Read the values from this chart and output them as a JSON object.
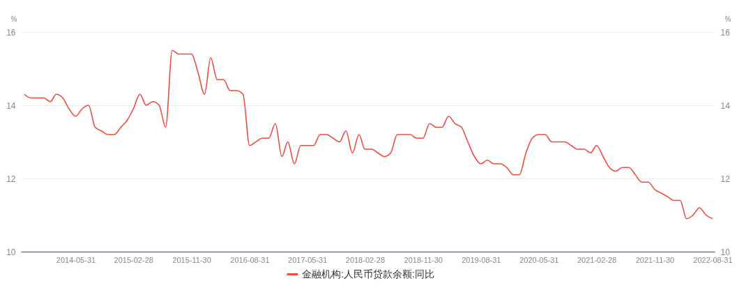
{
  "chart_data": {
    "type": "line",
    "ylabel": "%",
    "y2label": "%",
    "x": [
      "2013-09-30",
      "2013-10-31",
      "2013-11-30",
      "2013-12-31",
      "2014-01-31",
      "2014-02-28",
      "2014-03-31",
      "2014-04-30",
      "2014-05-31",
      "2014-06-30",
      "2014-07-31",
      "2014-08-31",
      "2014-09-30",
      "2014-10-31",
      "2014-11-30",
      "2014-12-31",
      "2015-01-31",
      "2015-02-28",
      "2015-03-31",
      "2015-04-30",
      "2015-05-31",
      "2015-06-30",
      "2015-07-31",
      "2015-08-31",
      "2015-09-30",
      "2015-10-31",
      "2015-11-30",
      "2015-12-31",
      "2016-01-31",
      "2016-02-29",
      "2016-03-31",
      "2016-04-30",
      "2016-05-31",
      "2016-06-30",
      "2016-07-31",
      "2016-08-31",
      "2016-09-30",
      "2016-10-31",
      "2016-11-30",
      "2016-12-31",
      "2017-01-31",
      "2017-02-28",
      "2017-03-31",
      "2017-04-30",
      "2017-05-31",
      "2017-06-30",
      "2017-07-31",
      "2017-08-31",
      "2017-09-30",
      "2017-10-31",
      "2017-11-30",
      "2017-12-31",
      "2018-01-31",
      "2018-02-28",
      "2018-03-31",
      "2018-04-30",
      "2018-05-31",
      "2018-06-30",
      "2018-07-31",
      "2018-08-31",
      "2018-09-30",
      "2018-10-31",
      "2018-11-30",
      "2018-12-31",
      "2019-01-31",
      "2019-02-28",
      "2019-03-31",
      "2019-04-30",
      "2019-05-31",
      "2019-06-30",
      "2019-07-31",
      "2019-08-31",
      "2019-09-30",
      "2019-10-31",
      "2019-11-30",
      "2019-12-31",
      "2020-01-31",
      "2020-02-29",
      "2020-03-31",
      "2020-04-30",
      "2020-05-31",
      "2020-06-30",
      "2020-07-31",
      "2020-08-31",
      "2020-09-30",
      "2020-10-31",
      "2020-11-30",
      "2020-12-31",
      "2021-01-31",
      "2021-02-28",
      "2021-03-31",
      "2021-04-30",
      "2021-05-31",
      "2021-06-30",
      "2021-07-31",
      "2021-08-31",
      "2021-09-30",
      "2021-10-31",
      "2021-11-30",
      "2021-12-31",
      "2022-01-31",
      "2022-02-28",
      "2022-03-31",
      "2022-04-30",
      "2022-05-31",
      "2022-06-30",
      "2022-07-31",
      "2022-08-31"
    ],
    "series": [
      {
        "name": "金融机构:人民币贷款余额:同比",
        "color": "#f04a3e",
        "values": [
          14.3,
          14.2,
          14.2,
          14.2,
          14.1,
          14.3,
          14.2,
          13.9,
          13.7,
          13.9,
          14.0,
          13.4,
          13.3,
          13.2,
          13.2,
          13.4,
          13.6,
          13.9,
          14.3,
          14.0,
          14.1,
          14.0,
          13.4,
          15.5,
          15.4,
          15.4,
          15.4,
          14.9,
          14.3,
          15.3,
          14.7,
          14.7,
          14.4,
          14.4,
          14.3,
          12.9,
          13.0,
          13.1,
          13.1,
          13.5,
          12.6,
          13.0,
          12.4,
          12.9,
          12.9,
          12.9,
          13.2,
          13.2,
          13.1,
          13.0,
          13.3,
          12.7,
          13.2,
          12.8,
          12.8,
          12.7,
          12.6,
          12.7,
          13.2,
          13.2,
          13.2,
          13.1,
          13.1,
          13.5,
          13.4,
          13.4,
          13.7,
          13.5,
          13.4,
          13.0,
          12.6,
          12.4,
          12.5,
          12.4,
          12.4,
          12.3,
          12.1,
          12.1,
          12.7,
          13.1,
          13.2,
          13.2,
          13.0,
          13.0,
          13.0,
          12.9,
          12.8,
          12.8,
          12.7,
          12.9,
          12.6,
          12.3,
          12.2,
          12.3,
          12.3,
          12.1,
          11.9,
          11.9,
          11.7,
          11.6,
          11.5,
          11.4,
          11.4,
          10.9,
          11.0,
          11.2,
          11.0,
          10.9
        ]
      }
    ],
    "xlim": [
      "2013-09-14",
      "2022-09-10"
    ],
    "xticks": [
      "2014-05-31",
      "2015-02-28",
      "2015-11-30",
      "2016-08-31",
      "2017-05-31",
      "2018-02-28",
      "2018-11-30",
      "2019-08-31",
      "2020-05-31",
      "2021-02-28",
      "2021-11-30",
      "2022-08-31"
    ],
    "ylim": [
      10,
      16
    ],
    "yticks": [
      10,
      12,
      14,
      16
    ],
    "y2lim": [
      10,
      16
    ],
    "y2ticks": [
      10,
      12,
      14,
      16
    ],
    "grid": "y",
    "legend": "bottom"
  }
}
